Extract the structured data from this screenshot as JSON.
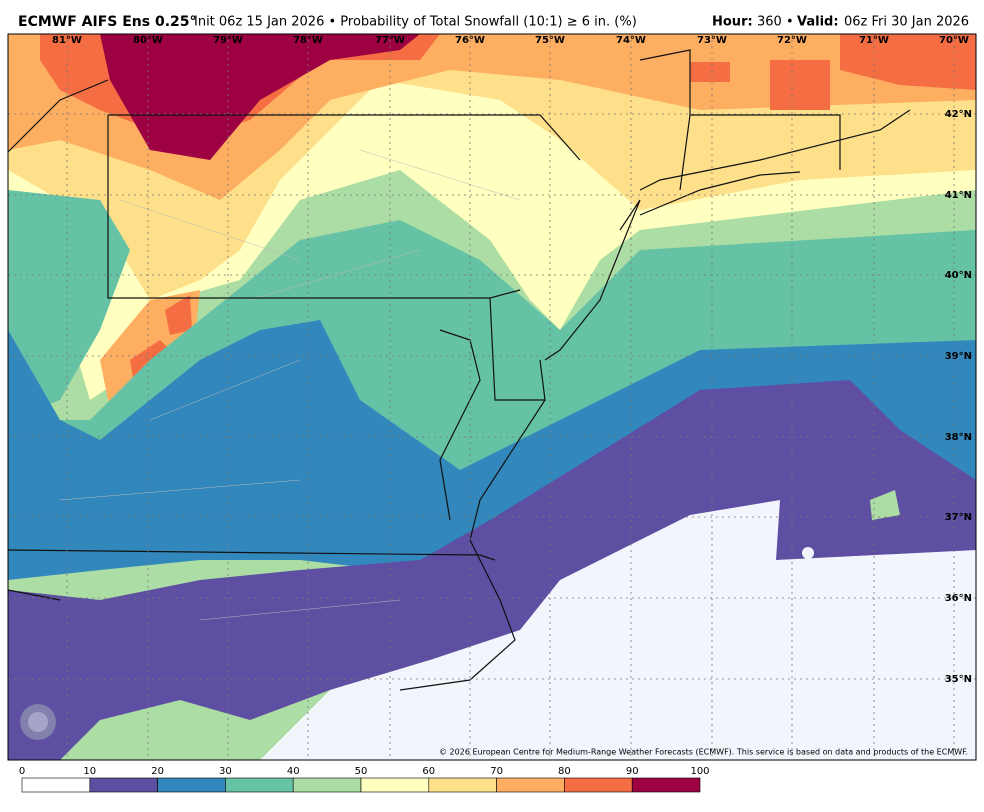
{
  "header": {
    "title": "ECMWF AIFS Ens 0.25°",
    "subtitle": "Init 06z 15 Jan 2026 • Probability of Total Snowfall (10:1) ≥ 6 in. (%)",
    "hour_label": "Hour:",
    "hour_value": "360 •",
    "valid_label": "Valid:",
    "valid_value": "06z Fri 30 Jan 2026"
  },
  "map": {
    "lon_labels": [
      "81°W",
      "80°W",
      "79°W",
      "78°W",
      "77°W",
      "76°W",
      "75°W",
      "74°W",
      "73°W",
      "72°W",
      "71°W",
      "70°W"
    ],
    "lat_labels": [
      "42°N",
      "41°N",
      "40°N",
      "39°N",
      "38°N",
      "37°N",
      "36°N",
      "35°N"
    ],
    "credit": "© 2026 European Centre for Medium-Range Weather Forecasts (ECMWF). This service is based on data and products of the ECMWF."
  },
  "legend": {
    "ticks": [
      0,
      10,
      20,
      30,
      40,
      50,
      60,
      70,
      80,
      90,
      100
    ],
    "colors": [
      "#ffffff",
      "#5e4fa2",
      "#3288bd",
      "#66c2a5",
      "#abdda4",
      "#ffffbf",
      "#fee08b",
      "#fdae61",
      "#f46d43",
      "#9e0142"
    ]
  }
}
